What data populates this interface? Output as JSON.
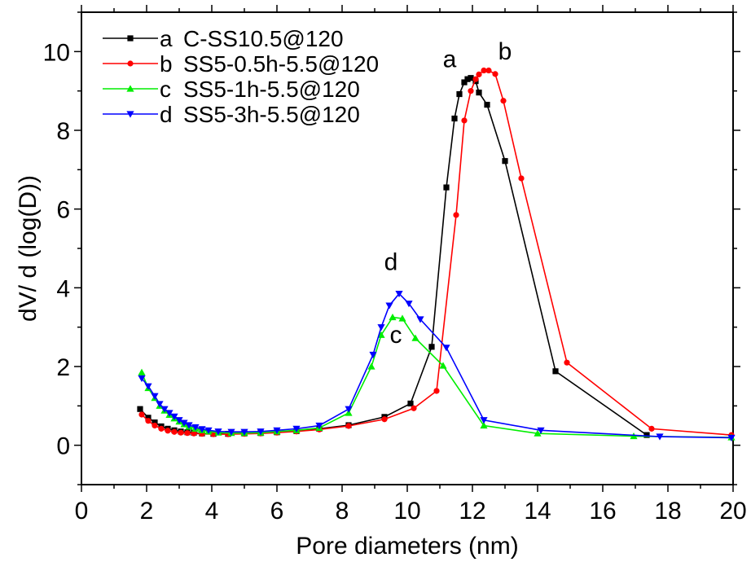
{
  "chart_data": {
    "type": "line",
    "xlabel": "Pore diameters (nm)",
    "ylabel": "dV/ d (log(D))",
    "xlim": [
      0,
      20
    ],
    "ylim": [
      -1,
      11
    ],
    "x_ticks": [
      0,
      2,
      4,
      6,
      8,
      10,
      12,
      14,
      16,
      18,
      20
    ],
    "y_ticks": [
      0,
      2,
      4,
      6,
      8,
      10
    ],
    "legend_position": "top-left",
    "series": [
      {
        "name": "C-SS10.5@120",
        "legend_label": "a",
        "color": "#000000",
        "marker": "square",
        "peak_label": "a",
        "points": [
          [
            1.8,
            0.92
          ],
          [
            2.05,
            0.7
          ],
          [
            2.25,
            0.58
          ],
          [
            2.45,
            0.48
          ],
          [
            2.65,
            0.42
          ],
          [
            2.85,
            0.38
          ],
          [
            3.05,
            0.35
          ],
          [
            3.25,
            0.33
          ],
          [
            3.45,
            0.32
          ],
          [
            3.7,
            0.3
          ],
          [
            4.05,
            0.29
          ],
          [
            4.5,
            0.29
          ],
          [
            5.0,
            0.3
          ],
          [
            5.5,
            0.31
          ],
          [
            6.0,
            0.33
          ],
          [
            6.6,
            0.36
          ],
          [
            7.3,
            0.42
          ],
          [
            8.2,
            0.51
          ],
          [
            9.3,
            0.72
          ],
          [
            10.1,
            1.06
          ],
          [
            10.75,
            2.5
          ],
          [
            11.2,
            6.55
          ],
          [
            11.45,
            8.3
          ],
          [
            11.6,
            8.92
          ],
          [
            11.75,
            9.22
          ],
          [
            11.85,
            9.3
          ],
          [
            11.95,
            9.33
          ],
          [
            12.1,
            9.25
          ],
          [
            12.2,
            8.96
          ],
          [
            12.45,
            8.65
          ],
          [
            13.0,
            7.22
          ],
          [
            14.55,
            1.88
          ],
          [
            17.35,
            0.26
          ]
        ]
      },
      {
        "name": "SS5-0.5h-5.5@120",
        "legend_label": "b",
        "color": "#ff0000",
        "marker": "circle",
        "peak_label": "b",
        "points": [
          [
            1.85,
            0.78
          ],
          [
            2.05,
            0.62
          ],
          [
            2.25,
            0.5
          ],
          [
            2.45,
            0.42
          ],
          [
            2.65,
            0.37
          ],
          [
            2.85,
            0.34
          ],
          [
            3.05,
            0.32
          ],
          [
            3.25,
            0.31
          ],
          [
            3.45,
            0.3
          ],
          [
            3.7,
            0.29
          ],
          [
            4.05,
            0.28
          ],
          [
            4.5,
            0.28
          ],
          [
            5.0,
            0.29
          ],
          [
            5.5,
            0.3
          ],
          [
            6.0,
            0.32
          ],
          [
            6.6,
            0.35
          ],
          [
            7.3,
            0.4
          ],
          [
            8.2,
            0.49
          ],
          [
            9.3,
            0.66
          ],
          [
            10.2,
            0.94
          ],
          [
            10.9,
            1.38
          ],
          [
            11.5,
            5.85
          ],
          [
            11.75,
            8.25
          ],
          [
            11.95,
            9.0
          ],
          [
            12.1,
            9.3
          ],
          [
            12.2,
            9.42
          ],
          [
            12.35,
            9.52
          ],
          [
            12.5,
            9.52
          ],
          [
            12.7,
            9.43
          ],
          [
            12.95,
            8.75
          ],
          [
            13.5,
            6.78
          ],
          [
            14.9,
            2.1
          ],
          [
            17.5,
            0.42
          ],
          [
            19.95,
            0.26
          ]
        ]
      },
      {
        "name": "SS5-1h-5.5@120",
        "legend_label": "c",
        "color": "#00ee00",
        "marker": "triangle-up",
        "peak_label": "c",
        "points": [
          [
            1.85,
            1.85
          ],
          [
            2.05,
            1.45
          ],
          [
            2.25,
            1.2
          ],
          [
            2.4,
            1.0
          ],
          [
            2.55,
            0.88
          ],
          [
            2.7,
            0.77
          ],
          [
            2.85,
            0.68
          ],
          [
            3.0,
            0.6
          ],
          [
            3.15,
            0.53
          ],
          [
            3.3,
            0.47
          ],
          [
            3.5,
            0.42
          ],
          [
            3.7,
            0.38
          ],
          [
            3.9,
            0.35
          ],
          [
            4.2,
            0.32
          ],
          [
            4.6,
            0.31
          ],
          [
            5.0,
            0.31
          ],
          [
            5.5,
            0.32
          ],
          [
            6.0,
            0.35
          ],
          [
            6.6,
            0.38
          ],
          [
            7.3,
            0.44
          ],
          [
            8.2,
            0.82
          ],
          [
            8.9,
            2.0
          ],
          [
            9.2,
            2.8
          ],
          [
            9.55,
            3.25
          ],
          [
            9.85,
            3.22
          ],
          [
            10.25,
            2.72
          ],
          [
            11.1,
            2.02
          ],
          [
            12.35,
            0.5
          ],
          [
            14.0,
            0.3
          ],
          [
            16.95,
            0.23
          ],
          [
            19.95,
            0.2
          ]
        ]
      },
      {
        "name": "SS5-3h-5.5@120",
        "legend_label": "d",
        "color": "#0000ff",
        "marker": "triangle-down",
        "peak_label": "d",
        "points": [
          [
            1.85,
            1.7
          ],
          [
            2.05,
            1.5
          ],
          [
            2.25,
            1.25
          ],
          [
            2.4,
            1.05
          ],
          [
            2.55,
            0.92
          ],
          [
            2.7,
            0.82
          ],
          [
            2.85,
            0.73
          ],
          [
            3.0,
            0.64
          ],
          [
            3.15,
            0.57
          ],
          [
            3.3,
            0.51
          ],
          [
            3.5,
            0.46
          ],
          [
            3.7,
            0.41
          ],
          [
            3.9,
            0.38
          ],
          [
            4.2,
            0.35
          ],
          [
            4.6,
            0.34
          ],
          [
            5.0,
            0.34
          ],
          [
            5.5,
            0.35
          ],
          [
            6.0,
            0.38
          ],
          [
            6.6,
            0.42
          ],
          [
            7.3,
            0.5
          ],
          [
            8.2,
            0.92
          ],
          [
            8.95,
            2.3
          ],
          [
            9.2,
            3.0
          ],
          [
            9.45,
            3.55
          ],
          [
            9.75,
            3.85
          ],
          [
            10.05,
            3.6
          ],
          [
            10.4,
            3.2
          ],
          [
            11.2,
            2.48
          ],
          [
            12.35,
            0.64
          ],
          [
            14.1,
            0.38
          ],
          [
            17.75,
            0.22
          ],
          [
            19.95,
            0.19
          ]
        ]
      }
    ],
    "peak_labels": [
      {
        "text": "a",
        "x": 11.3,
        "y": 9.6
      },
      {
        "text": "b",
        "x": 13.0,
        "y": 9.8
      },
      {
        "text": "c",
        "x": 9.65,
        "y": 2.6
      },
      {
        "text": "d",
        "x": 9.5,
        "y": 4.45
      }
    ]
  }
}
